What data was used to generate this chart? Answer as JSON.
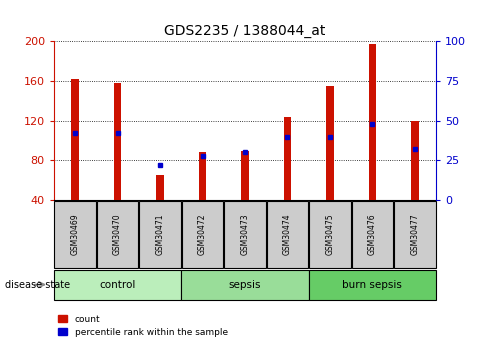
{
  "title": "GDS2235 / 1388044_at",
  "samples": [
    "GSM30469",
    "GSM30470",
    "GSM30471",
    "GSM30472",
    "GSM30473",
    "GSM30474",
    "GSM30475",
    "GSM30476",
    "GSM30477"
  ],
  "counts": [
    162,
    158,
    65,
    88,
    90,
    124,
    155,
    197,
    120
  ],
  "percentiles": [
    42,
    42,
    22,
    28,
    30,
    40,
    40,
    48,
    32
  ],
  "groups": [
    {
      "label": "control",
      "indices": [
        0,
        1,
        2
      ],
      "color": "#bbeebb"
    },
    {
      "label": "sepsis",
      "indices": [
        3,
        4,
        5
      ],
      "color": "#99dd99"
    },
    {
      "label": "burn sepsis",
      "indices": [
        6,
        7,
        8
      ],
      "color": "#66cc66"
    }
  ],
  "ylim_left": [
    40,
    200
  ],
  "ylim_right": [
    0,
    100
  ],
  "yticks_left": [
    40,
    80,
    120,
    160,
    200
  ],
  "yticks_right": [
    0,
    25,
    50,
    75,
    100
  ],
  "bar_color": "#cc1100",
  "dot_color": "#0000cc",
  "bg_color": "#ffffff",
  "left_tick_color": "#cc1100",
  "right_tick_color": "#0000cc",
  "label_count": "count",
  "label_percentile": "percentile rank within the sample",
  "disease_state_label": "disease state",
  "bar_width": 0.18,
  "tick_bg_color": "#cccccc",
  "dot_size": 3.5
}
